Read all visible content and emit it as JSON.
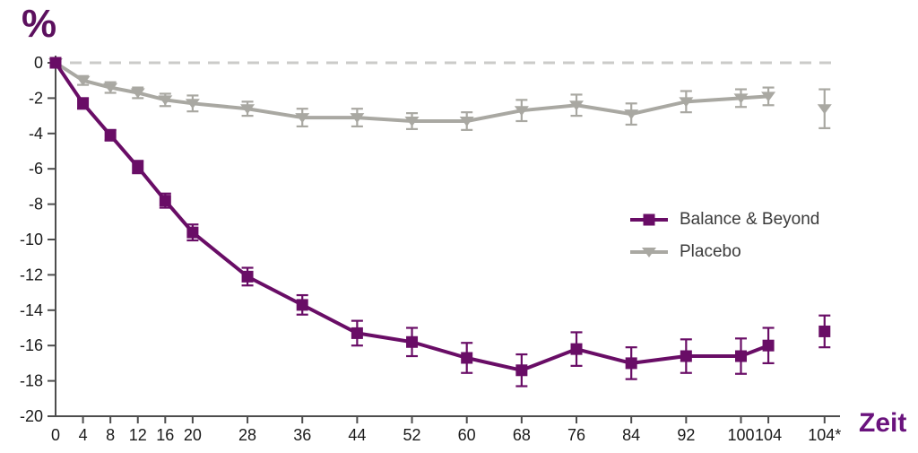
{
  "labels": {
    "y_unit": "%",
    "x_title": "Zeit"
  },
  "colors": {
    "background": "#ffffff",
    "balance_series": "#690d66",
    "placebo_series": "#a9a8a2",
    "dashed_zero_line": "#cbcbc9",
    "axis": "#4d4d4d",
    "tick_label": "#1a1a1a",
    "percent_label": "#5c105e",
    "zeit_label": "#6a137d",
    "legend_text": "#3b3b3b"
  },
  "chart_data": {
    "type": "line",
    "title": "",
    "xlabel": "Zeit",
    "ylabel": "%",
    "ylim": [
      -20,
      0
    ],
    "grid": "none",
    "legend_position": "center-right",
    "zero_reference_line": {
      "y": 0,
      "style": "dashed",
      "color": "#cbcbc9"
    },
    "y_ticks": [
      "0",
      "-2",
      "-4",
      "-6",
      "-8",
      "-10",
      "-12",
      "-14",
      "-16",
      "-18",
      "-20"
    ],
    "y_tick_values": [
      0,
      -2,
      -4,
      -6,
      -8,
      -10,
      -12,
      -14,
      -16,
      -18,
      -20
    ],
    "x_tick_labels": [
      "0",
      "4",
      "8",
      "12",
      "16",
      "20",
      "28",
      "36",
      "44",
      "52",
      "60",
      "68",
      "76",
      "84",
      "92",
      "100",
      "104",
      "104*"
    ],
    "x_values": [
      0,
      4,
      8,
      12,
      16,
      20,
      28,
      36,
      44,
      52,
      60,
      68,
      76,
      84,
      92,
      100,
      104,
      112.2
    ],
    "note": "last point (104*) is detached from the connected line in both series",
    "series": [
      {
        "name": "Placebo",
        "color": "#a9a8a2",
        "marker": "triangle-down",
        "values": [
          0,
          -1.0,
          -1.4,
          -1.7,
          -2.1,
          -2.3,
          -2.6,
          -3.1,
          -3.1,
          -3.3,
          -3.3,
          -2.7,
          -2.4,
          -2.9,
          -2.2,
          -2.0,
          -1.9,
          -2.6
        ],
        "errors": [
          0,
          0.25,
          0.3,
          0.3,
          0.35,
          0.45,
          0.4,
          0.5,
          0.5,
          0.45,
          0.5,
          0.6,
          0.6,
          0.6,
          0.6,
          0.5,
          0.5,
          1.1
        ]
      },
      {
        "name": "Balance & Beyond",
        "color": "#690d66",
        "marker": "square",
        "values": [
          0,
          -2.3,
          -4.1,
          -5.9,
          -7.8,
          -9.6,
          -12.1,
          -13.7,
          -15.3,
          -15.8,
          -16.7,
          -17.4,
          -16.2,
          -17.0,
          -16.6,
          -16.6,
          -16.0,
          -15.2
        ],
        "errors": [
          0,
          0.3,
          0.3,
          0.35,
          0.4,
          0.45,
          0.5,
          0.55,
          0.7,
          0.8,
          0.85,
          0.9,
          0.95,
          0.9,
          0.95,
          1.0,
          1.0,
          0.9
        ]
      }
    ]
  }
}
